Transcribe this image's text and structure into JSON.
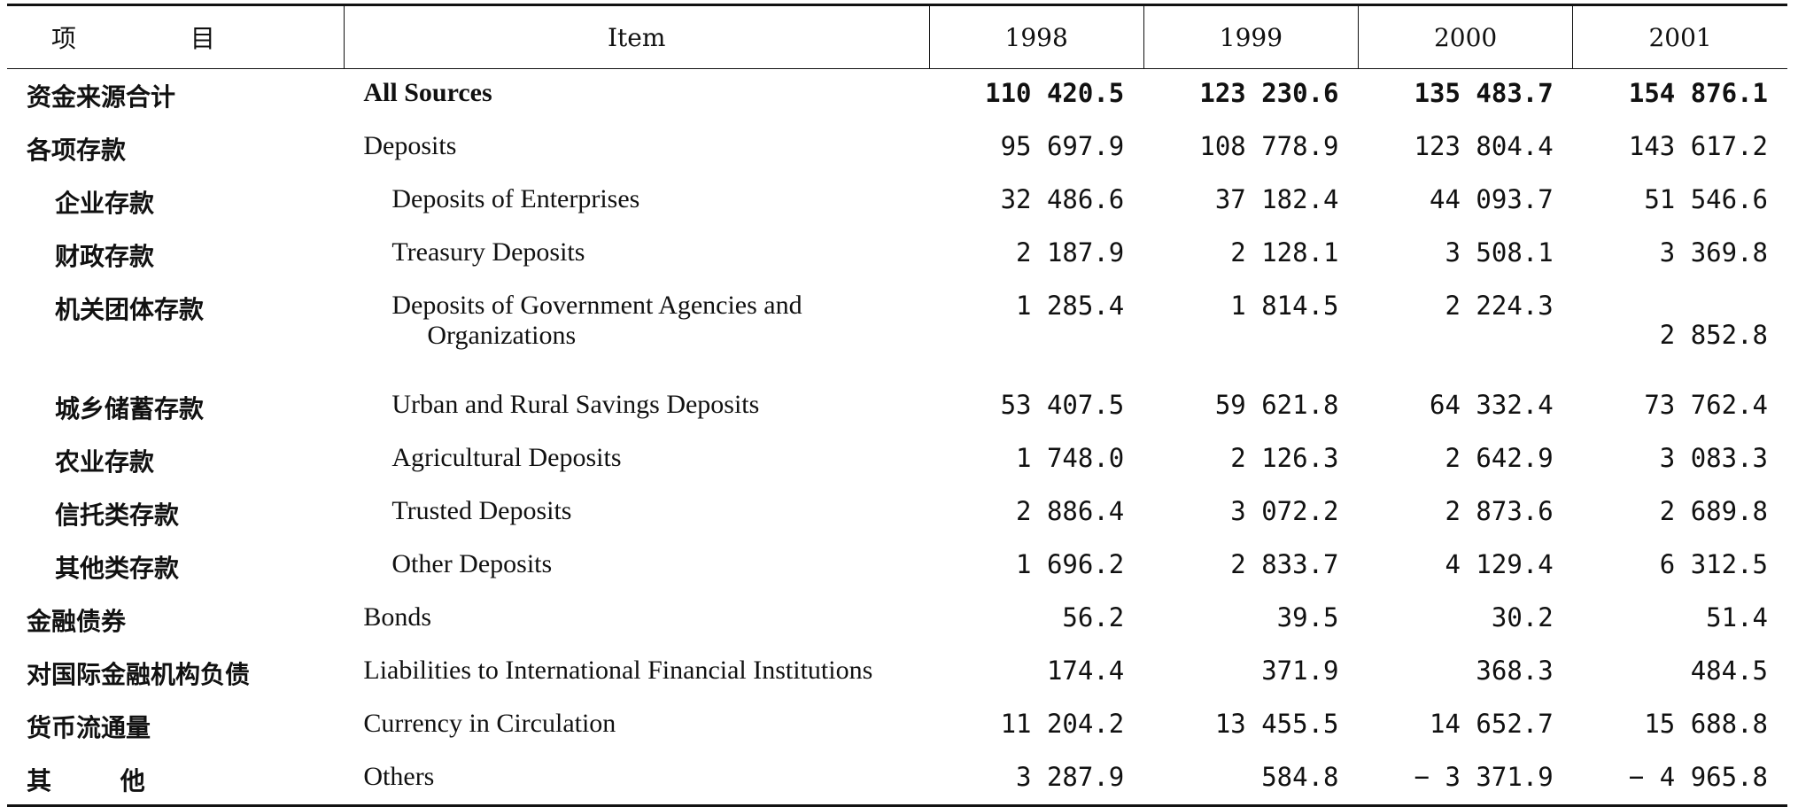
{
  "header": {
    "cn": "项 目",
    "en": "Item",
    "years": [
      "1998",
      "1999",
      "2000",
      "2001"
    ]
  },
  "rows": [
    {
      "cn": "资金来源合计",
      "en": "All Sources",
      "values": [
        "110 420.5",
        "123 230.6",
        "135 483.7",
        "154 876.1"
      ]
    },
    {
      "cn": "各项存款",
      "en": "Deposits",
      "values": [
        "95 697.9",
        "108 778.9",
        "123 804.4",
        "143 617.2"
      ]
    },
    {
      "cn": "企业存款",
      "en": "Deposits of Enterprises",
      "values": [
        "32 486.6",
        "37 182.4",
        "44 093.7",
        "51 546.6"
      ]
    },
    {
      "cn": "财政存款",
      "en": "Treasury Deposits",
      "values": [
        "2 187.9",
        "2 128.1",
        "3 508.1",
        "3 369.8"
      ]
    },
    {
      "cn": "机关团体存款",
      "en": "Deposits of Government Agencies and",
      "en2": "Organizations",
      "values": [
        "1 285.4",
        "1 814.5",
        "2 224.3",
        "2 852.8"
      ]
    },
    {
      "cn": "城乡储蓄存款",
      "en": "Urban and Rural Savings Deposits",
      "values": [
        "53 407.5",
        "59 621.8",
        "64 332.4",
        "73 762.4"
      ]
    },
    {
      "cn": "农业存款",
      "en": "Agricultural Deposits",
      "values": [
        "1 748.0",
        "2 126.3",
        "2 642.9",
        "3 083.3"
      ]
    },
    {
      "cn": "信托类存款",
      "en": "Trusted Deposits",
      "values": [
        "2 886.4",
        "3 072.2",
        "2 873.6",
        "2 689.8"
      ]
    },
    {
      "cn": "其他类存款",
      "en": "Other Deposits",
      "values": [
        "1 696.2",
        "2 833.7",
        "4 129.4",
        "6 312.5"
      ]
    },
    {
      "cn": "金融债券",
      "en": "Bonds",
      "values": [
        "56.2",
        "39.5",
        "30.2",
        "51.4"
      ]
    },
    {
      "cn": "对国际金融机构负债",
      "en": "Liabilities to International Financial Institutions",
      "values": [
        "174.4",
        "371.9",
        "368.3",
        "484.5"
      ]
    },
    {
      "cn": "货币流通量",
      "en": "Currency in Circulation",
      "values": [
        "11 204.2",
        "13 455.5",
        "14 652.7",
        "15 688.8"
      ]
    },
    {
      "cn": "其 他",
      "en": "Others",
      "values": [
        "3 287.9",
        "584.8",
        "− 3 371.9",
        "− 4 965.8"
      ]
    }
  ]
}
